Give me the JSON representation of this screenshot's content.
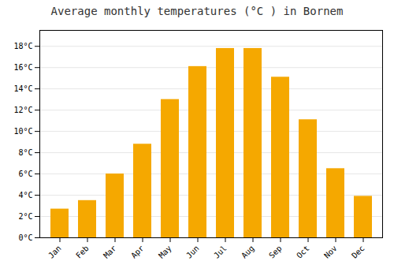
{
  "chart_data": {
    "type": "bar",
    "title": "Average monthly temperatures (°C ) in Bornem",
    "categories": [
      "Jan",
      "Feb",
      "Mar",
      "Apr",
      "May",
      "Jun",
      "Jul",
      "Aug",
      "Sep",
      "Oct",
      "Nov",
      "Dec"
    ],
    "values": [
      2.7,
      3.5,
      6.0,
      8.8,
      13.0,
      16.1,
      17.8,
      17.8,
      15.1,
      11.1,
      6.5,
      3.9
    ],
    "color": "#F5A800",
    "ylim": [
      0,
      19.5
    ],
    "yticks": [
      {
        "value": 0,
        "label": "0°C"
      },
      {
        "value": 2,
        "label": "2°C"
      },
      {
        "value": 4,
        "label": "4°C"
      },
      {
        "value": 6,
        "label": "6°C"
      },
      {
        "value": 8,
        "label": "8°C"
      },
      {
        "value": 10,
        "label": "10°C"
      },
      {
        "value": 12,
        "label": "12°C"
      },
      {
        "value": 14,
        "label": "14°C"
      },
      {
        "value": 16,
        "label": "16°C"
      },
      {
        "value": 18,
        "label": "18°C"
      }
    ],
    "grid": true
  }
}
